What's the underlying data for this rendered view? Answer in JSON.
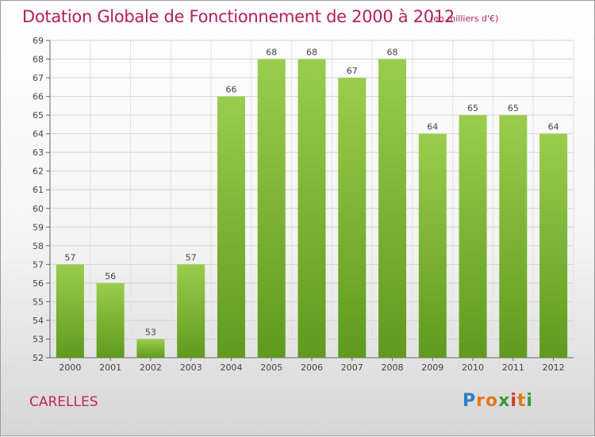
{
  "header": {
    "title": "Dotation Globale de Fonctionnement de 2000 à 2012",
    "subtitle": "(en milliers d'€)"
  },
  "commune": "CARELLES",
  "logo": {
    "text": "Proxiti"
  },
  "colors": {
    "accent": "#b0205a",
    "bar_top": "#9acd4c",
    "bar_bottom": "#5f9a1e"
  },
  "chart_data": {
    "type": "bar",
    "title": "Dotation Globale de Fonctionnement de 2000 à 2012",
    "subtitle": "(en milliers d'€)",
    "xlabel": "",
    "ylabel": "",
    "categories": [
      "2000",
      "2001",
      "2002",
      "2003",
      "2004",
      "2005",
      "2006",
      "2007",
      "2008",
      "2009",
      "2010",
      "2011",
      "2012"
    ],
    "values": [
      57,
      56,
      53,
      57,
      66,
      68,
      68,
      67,
      68,
      64,
      65,
      65,
      64
    ],
    "ylim": [
      52,
      69
    ],
    "yticks": [
      52,
      53,
      54,
      55,
      56,
      57,
      58,
      59,
      60,
      61,
      62,
      63,
      64,
      65,
      66,
      67,
      68,
      69
    ],
    "grid": true,
    "data_labels": true
  }
}
